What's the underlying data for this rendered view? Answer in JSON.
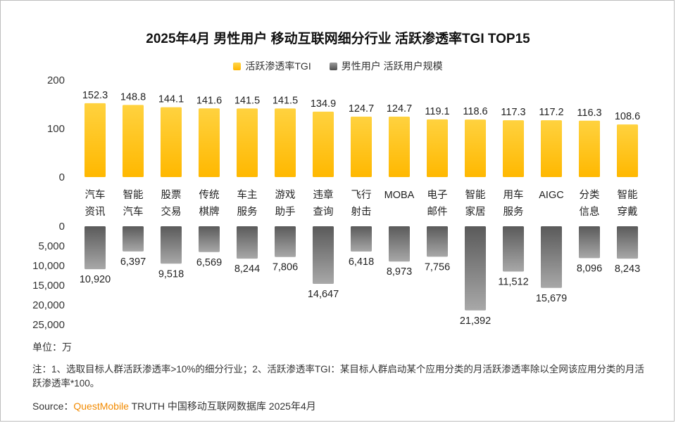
{
  "title": "2025年4月 男性用户 移动互联网细分行业 活跃渗透率TGI TOP15",
  "legend": [
    {
      "label": "活跃渗透率TGI",
      "color": "#FFC000"
    },
    {
      "label": "男性用户 活跃用户规模",
      "color": "#6f6f6f"
    }
  ],
  "unit_text": "单位：万",
  "note_text": "注：1、选取目标人群活跃渗透率>10%的细分行业；2、活跃渗透率TGI：某目标人群启动某个应用分类的月活跃渗透率除以全网该应用分类的月活跃渗透率*100。",
  "source": {
    "prefix": "Source：",
    "brand": "QuestMobile",
    "suffix": " TRUTH 中国移动互联网数据库 2025年4月"
  },
  "chart_data": {
    "type": "bar",
    "categories": [
      [
        "汽车",
        "资讯"
      ],
      [
        "智能",
        "汽车"
      ],
      [
        "股票",
        "交易"
      ],
      [
        "传统",
        "棋牌"
      ],
      [
        "车主",
        "服务"
      ],
      [
        "游戏",
        "助手"
      ],
      [
        "违章",
        "查询"
      ],
      [
        "飞行",
        "射击"
      ],
      [
        "MOBA"
      ],
      [
        "电子",
        "邮件"
      ],
      [
        "智能",
        "家居"
      ],
      [
        "用车",
        "服务"
      ],
      [
        "AIGC"
      ],
      [
        "分类",
        "信息"
      ],
      [
        "智能",
        "穿戴"
      ]
    ],
    "series": [
      {
        "name": "活跃渗透率TGI",
        "values": [
          152.3,
          148.8,
          144.1,
          141.6,
          141.5,
          141.5,
          134.9,
          124.7,
          124.7,
          119.1,
          118.6,
          117.3,
          117.2,
          116.3,
          108.6
        ],
        "labels": [
          "152.3",
          "148.8",
          "144.1",
          "141.6",
          "141.5",
          "141.5",
          "134.9",
          "124.7",
          "124.7",
          "119.1",
          "118.6",
          "117.3",
          "117.2",
          "116.3",
          "108.6"
        ],
        "axis_ticks": [
          "0",
          "100",
          "200"
        ],
        "ylim": [
          0,
          200
        ]
      },
      {
        "name": "男性用户 活跃用户规模",
        "values": [
          10920,
          6397,
          9518,
          6569,
          8244,
          7806,
          14647,
          6418,
          8973,
          7756,
          21392,
          11512,
          15679,
          8096,
          8243
        ],
        "labels": [
          "10,920",
          "6,397",
          "9,518",
          "6,569",
          "8,244",
          "7,806",
          "14,647",
          "6,418",
          "8,973",
          "7,756",
          "21,392",
          "11,512",
          "15,679",
          "8,096",
          "8,243"
        ],
        "axis_ticks": [
          "0",
          "5,000",
          "10,000",
          "15,000",
          "20,000",
          "25,000"
        ],
        "ylim": [
          0,
          25000
        ]
      }
    ]
  }
}
